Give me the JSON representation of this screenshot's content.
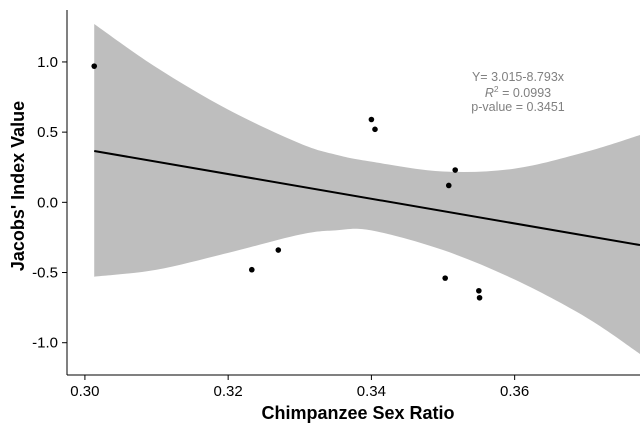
{
  "chart_data": {
    "type": "scatter",
    "title": "",
    "xlabel": "Chimpanzee Sex Ratio",
    "ylabel": "Jacobs' Index Value",
    "xlim": [
      0.2975,
      0.3775
    ],
    "ylim": [
      -1.23,
      1.37
    ],
    "x_ticks": [
      0.3,
      0.32,
      0.34,
      0.36
    ],
    "x_tick_labels": [
      "0.30",
      "0.32",
      "0.34",
      "0.36"
    ],
    "y_ticks": [
      1.0,
      0.5,
      0.0,
      -0.5,
      -1.0
    ],
    "y_tick_labels": [
      "1.0",
      "0.5",
      "0.0",
      "-0.5",
      "-1.0"
    ],
    "grid": false,
    "legend": "none",
    "colors": {
      "points": "#000000",
      "fit_line": "#000000",
      "confidence_band": "#bebebe",
      "annotation": "#808080",
      "axis": "#000000"
    },
    "points": [
      {
        "x": 0.3013,
        "y": 0.97
      },
      {
        "x": 0.3233,
        "y": -0.48
      },
      {
        "x": 0.327,
        "y": -0.34
      },
      {
        "x": 0.34,
        "y": 0.59
      },
      {
        "x": 0.3405,
        "y": 0.52
      },
      {
        "x": 0.3503,
        "y": -0.54
      },
      {
        "x": 0.3508,
        "y": 0.12
      },
      {
        "x": 0.3517,
        "y": 0.23
      },
      {
        "x": 0.355,
        "y": -0.63
      },
      {
        "x": 0.3551,
        "y": -0.68
      }
    ],
    "fit": {
      "intercept": 3.015,
      "slope": -8.793,
      "x_range": [
        0.3013,
        0.3775
      ]
    },
    "confidence_band": {
      "x": [
        0.3013,
        0.31,
        0.32,
        0.33,
        0.335,
        0.34,
        0.35,
        0.36,
        0.37,
        0.3775
      ],
      "upper": [
        1.27,
        0.96,
        0.66,
        0.42,
        0.34,
        0.29,
        0.22,
        0.24,
        0.36,
        0.48
      ],
      "lower": [
        -0.53,
        -0.48,
        -0.36,
        -0.23,
        -0.2,
        -0.2,
        -0.34,
        -0.55,
        -0.82,
        -1.08
      ]
    },
    "annotation_lines": [
      "Y= 3.015-8.793x",
      "R",
      "2",
      " = 0.0993",
      "p-value = 0.3451"
    ]
  }
}
